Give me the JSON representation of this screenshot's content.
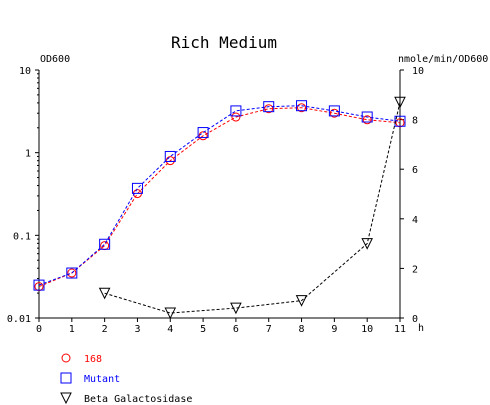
{
  "chart_data": {
    "type": "line",
    "title": "Rich Medium",
    "y_left_label": "OD600",
    "y_right_label": "nmole/min/OD600",
    "x_unit_label": "h",
    "x_ticks": [
      "0",
      "1",
      "2",
      "3",
      "4",
      "5",
      "6",
      "7",
      "8",
      "9",
      "10",
      "11"
    ],
    "y_left_ticks": [
      "10",
      "1",
      "0.1",
      "0.01"
    ],
    "y_right_ticks": [
      "0",
      "2",
      "4",
      "6",
      "8",
      "10"
    ],
    "xlim": [
      0,
      11
    ],
    "y_left_scale": "log",
    "y_left_lim": [
      0.01,
      10
    ],
    "y_right_lim": [
      0,
      10
    ],
    "grid": false,
    "legend_position": "bottom-left",
    "series": [
      {
        "name": "168",
        "axis": "left",
        "marker": "circle",
        "color": "#ff0000",
        "x": [
          0,
          1,
          2,
          3,
          4,
          5,
          6,
          7,
          8,
          9,
          10,
          11
        ],
        "y": [
          0.024,
          0.035,
          0.075,
          0.32,
          0.8,
          1.6,
          2.7,
          3.4,
          3.5,
          3.0,
          2.5,
          2.3
        ]
      },
      {
        "name": "Mutant",
        "axis": "left",
        "marker": "square",
        "color": "#0000ff",
        "x": [
          0,
          1,
          2,
          3,
          4,
          5,
          6,
          7,
          8,
          9,
          10,
          11
        ],
        "y": [
          0.025,
          0.035,
          0.078,
          0.37,
          0.9,
          1.75,
          3.2,
          3.6,
          3.7,
          3.2,
          2.7,
          2.4
        ]
      },
      {
        "name": "Beta Galactosidase",
        "axis": "right",
        "marker": "triangle-down",
        "color": "#000000",
        "x": [
          2,
          4,
          6,
          8,
          10,
          11
        ],
        "y": [
          1.0,
          0.2,
          0.4,
          0.7,
          3.0,
          8.7
        ]
      }
    ]
  }
}
